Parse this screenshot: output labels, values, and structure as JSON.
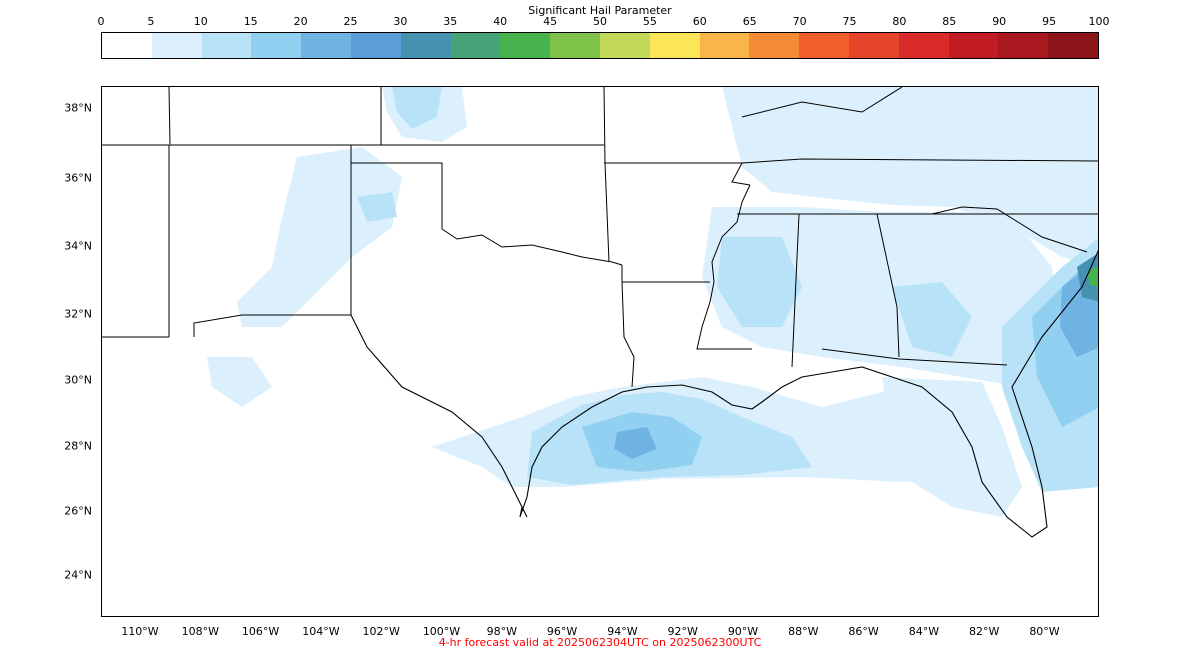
{
  "colorbar": {
    "title": "Significant Hail Parameter",
    "ticks": [
      "0",
      "5",
      "10",
      "15",
      "20",
      "25",
      "30",
      "35",
      "40",
      "45",
      "50",
      "55",
      "60",
      "65",
      "70",
      "75",
      "80",
      "85",
      "90",
      "95",
      "100"
    ],
    "colors": [
      "#ffffff",
      "#dbf0fc",
      "#b8e2f7",
      "#92d0f2",
      "#6fb3e3",
      "#5a9dd8",
      "#4592b0",
      "#48a27a",
      "#46b34c",
      "#7fc24a",
      "#c2d857",
      "#fbe65a",
      "#f9b548",
      "#f58b35",
      "#f05e2b",
      "#e5452b",
      "#d92b29",
      "#c11c24",
      "#a8181e",
      "#8c1519"
    ]
  },
  "map": {
    "lat_labels": [
      "38°N",
      "36°N",
      "34°N",
      "32°N",
      "30°N",
      "28°N",
      "26°N",
      "24°N"
    ],
    "lon_labels": [
      "110°W",
      "108°W",
      "106°W",
      "104°W",
      "102°W",
      "100°W",
      "98°W",
      "96°W",
      "94°W",
      "92°W",
      "90°W",
      "88°W",
      "86°W",
      "84°W",
      "82°W",
      "80°W"
    ]
  },
  "footer": "4-hr forecast valid at 2025062304UTC on 2025062300UTC"
}
